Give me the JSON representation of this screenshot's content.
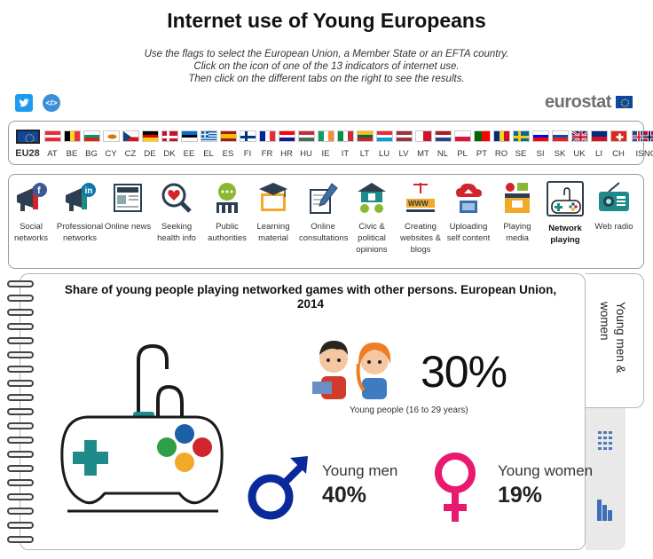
{
  "header": {
    "title": "Internet use of Young Europeans",
    "instructions": [
      "Use the flags to select the European Union, a Member State or an EFTA country.",
      "Click on the icon of one of the 13 indicators of internet use.",
      "Then click on the different tabs on the right to see the results."
    ],
    "logo_text": "eurostat",
    "share_embed_label": "</>"
  },
  "countries": [
    {
      "code": "EU28",
      "selected": true
    },
    {
      "code": "AT"
    },
    {
      "code": "BE"
    },
    {
      "code": "BG"
    },
    {
      "code": "CY"
    },
    {
      "code": "CZ"
    },
    {
      "code": "DE"
    },
    {
      "code": "DK"
    },
    {
      "code": "EE"
    },
    {
      "code": "EL"
    },
    {
      "code": "ES"
    },
    {
      "code": "FI"
    },
    {
      "code": "FR"
    },
    {
      "code": "HR"
    },
    {
      "code": "HU"
    },
    {
      "code": "IE"
    },
    {
      "code": "IT"
    },
    {
      "code": "LT"
    },
    {
      "code": "LU"
    },
    {
      "code": "LV"
    },
    {
      "code": "MT"
    },
    {
      "code": "NL"
    },
    {
      "code": "PL"
    },
    {
      "code": "PT"
    },
    {
      "code": "RO"
    },
    {
      "code": "SE"
    },
    {
      "code": "SI"
    },
    {
      "code": "SK"
    },
    {
      "code": "UK"
    },
    {
      "code": "LI"
    },
    {
      "code": "CH"
    },
    {
      "code": "IS"
    },
    {
      "code": "NO"
    }
  ],
  "indicators": [
    {
      "label": [
        "Social",
        "networks"
      ]
    },
    {
      "label": [
        "Professional",
        "networks"
      ]
    },
    {
      "label": [
        "Online news"
      ]
    },
    {
      "label": [
        "Seeking",
        "health info"
      ]
    },
    {
      "label": [
        "Public",
        "authorities"
      ]
    },
    {
      "label": [
        "Learning",
        "material"
      ]
    },
    {
      "label": [
        "Online",
        "consultations"
      ]
    },
    {
      "label": [
        "Civic &",
        "political",
        "opinions"
      ]
    },
    {
      "label": [
        "Creating",
        "websites &",
        "blogs"
      ]
    },
    {
      "label": [
        "Uploading",
        "self content"
      ]
    },
    {
      "label": [
        "Playing",
        "media"
      ]
    },
    {
      "label": [
        "Network",
        "playing"
      ],
      "selected": true
    },
    {
      "label": [
        "Web radio"
      ]
    }
  ],
  "result": {
    "title": "Share of young people playing networked games with other persons. European Union, 2014",
    "overall_value": "30%",
    "overall_label": "Young people (16 to 29 years)",
    "men_label": "Young men",
    "men_value": "40%",
    "women_label": "Young women",
    "women_value": "19%"
  },
  "tabs": {
    "active_label": "Young men & women",
    "other_tabs": [
      "table-icon",
      "bar-chart-icon"
    ]
  },
  "colors": {
    "male": "#0a2a9c",
    "female": "#e8196e",
    "teal": "#1e8a8a",
    "eu_blue": "#0e47a1"
  }
}
